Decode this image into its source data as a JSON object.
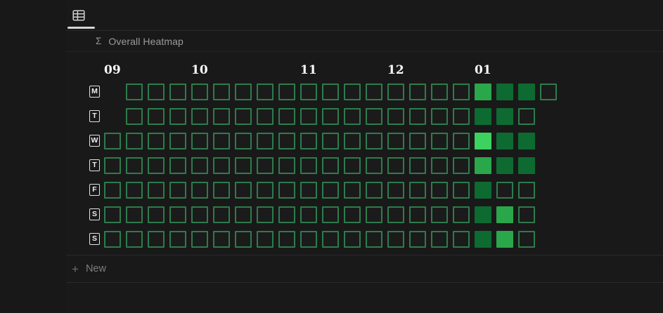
{
  "app": {
    "background": "#191919",
    "divider_color": "#2a2a2a"
  },
  "topbar": {
    "view_icon": "table-view-icon",
    "active_tab_underline_color": "#d5d5d5"
  },
  "header": {
    "formula_icon": "Σ",
    "title": "Overall Heatmap"
  },
  "footer": {
    "plus_icon": "+",
    "new_label": "New"
  },
  "chart_data": {
    "type": "heatmap",
    "title": "Overall Heatmap",
    "orientation": "weeks as columns, weekdays as rows",
    "month_tick_labels": [
      "09",
      "10",
      "11",
      "12",
      "01"
    ],
    "months": [
      {
        "label": "09",
        "col": 0
      },
      {
        "label": "10",
        "col": 4
      },
      {
        "label": "11",
        "col": 9
      },
      {
        "label": "12",
        "col": 13
      },
      {
        "label": "01",
        "col": 17
      }
    ],
    "weekday_labels": [
      "M",
      "T",
      "W",
      "T",
      "F",
      "S",
      "S"
    ],
    "cols": 21,
    "cell_states_legend": {
      "_": "no cell",
      "e": "empty outlined cell",
      "1": "filled dark green",
      "2": "filled medium green",
      "3": "filled bright green"
    },
    "outline_color": "#2d7c4c",
    "empty_cell_fill": "#1b1b1b",
    "level_colors": {
      "1": "#0d6b31",
      "2": "#2aa74a",
      "3": "#3dd15f"
    },
    "rows": [
      {
        "label": "M",
        "cells": "_eeeeeeeeeeeeeeee211e"
      },
      {
        "label": "T",
        "cells": "_eeeeeeeeeeeeeeee11e_"
      },
      {
        "label": "W",
        "cells": "eeeeeeeeeeeeeeeee311_"
      },
      {
        "label": "T",
        "cells": "eeeeeeeeeeeeeeeee211_"
      },
      {
        "label": "F",
        "cells": "eeeeeeeeeeeeeeeee1ee_"
      },
      {
        "label": "S",
        "cells": "eeeeeeeeeeeeeeeee12e_"
      },
      {
        "label": "S",
        "cells": "eeeeeeeeeeeeeeeee12e_"
      }
    ]
  }
}
